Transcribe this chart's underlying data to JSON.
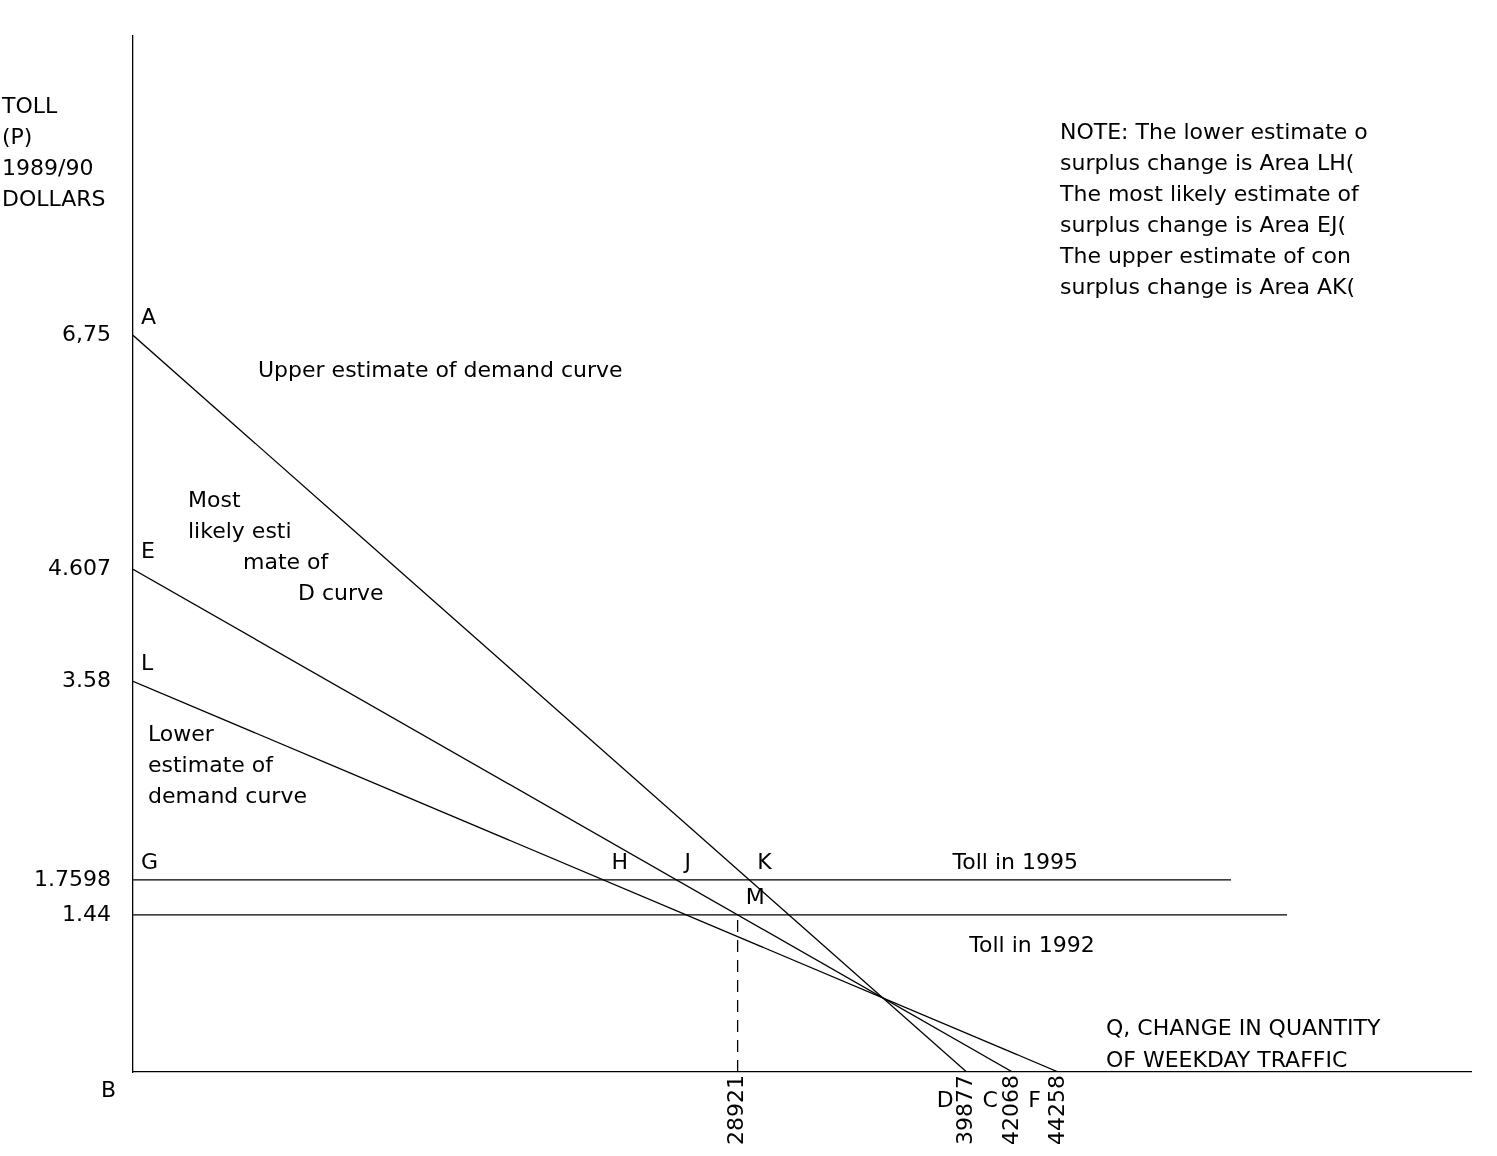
{
  "chart_data": {
    "type": "line",
    "ylabel": "TOLL\n(P)\n1989/90\nDOLLARS",
    "xlabel": "Q, CHANGE IN QUANTITY\nOF WEEKDAY TRAFFIC",
    "xlim": [
      0,
      64000
    ],
    "xticks": [
      28921,
      39877,
      42068,
      44258
    ],
    "ylim": [
      0,
      9.5
    ],
    "yticks": [
      {
        "value": 6.75,
        "label": "6,75"
      },
      4.607,
      3.58,
      1.7598,
      1.44
    ],
    "grid": false,
    "legend": false,
    "marker": "none",
    "series": [
      {
        "color": "#000000",
        "x": [
          0,
          39877
        ],
        "values": [
          6.75,
          0
        ]
      },
      {
        "color": "#000000",
        "x": [
          0,
          42068
        ],
        "values": [
          4.607,
          0
        ]
      },
      {
        "color": "#000000",
        "x": [
          0,
          44258
        ],
        "values": [
          3.58,
          0
        ]
      },
      {
        "color": "#000000",
        "x": [
          28921,
          28921
        ],
        "values": [
          0,
          1.44
        ],
        "line_style": "dashed"
      }
    ],
    "ref_lines": [
      {
        "axis": "y",
        "value": 1.7598,
        "label": "Toll in 1995",
        "color": "#000000"
      },
      {
        "axis": "y",
        "value": 1.44,
        "label": "Toll in 1992",
        "color": "#000000"
      }
    ],
    "annotations": [
      {
        "text": "A",
        "x": 0,
        "y": 6.75
      },
      {
        "text": "E",
        "x": 0,
        "y": 4.607
      },
      {
        "text": "L",
        "x": 0,
        "y": 3.58
      },
      {
        "text": "G",
        "x": 0,
        "y": 1.7598
      },
      "B",
      {
        "text": "H",
        "x": 22503,
        "y": 1.7598
      },
      {
        "text": "J",
        "x": 25999,
        "y": 1.7598
      },
      {
        "text": "K",
        "x": 29481,
        "y": 1.7598
      },
      {
        "text": "M",
        "x": 28921,
        "y": 1.44
      },
      {
        "text": "D",
        "x": 39877,
        "y": 0
      },
      {
        "text": "C",
        "x": 42068,
        "y": 0
      },
      {
        "text": "F",
        "x": 44258,
        "y": 0
      },
      "Upper estimate of demand curve",
      "Most\nlikely esti\nmate of\nD curve",
      "Lower\nestimate of\ndemand curve",
      "NOTE: The lower estimate o\nsurplus change is Area LH(\nThe most likely estimate of\nsurplus change is Area EJ(\nThe upper estimate of con\nsurplus change is Area AK("
    ]
  }
}
